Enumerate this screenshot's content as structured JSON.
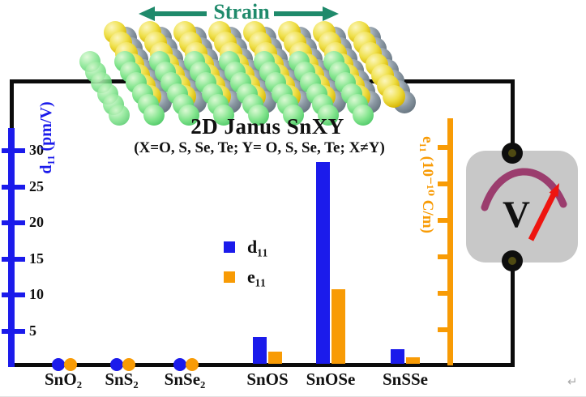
{
  "figure": {
    "strain_label": "Strain",
    "title": "2D Janus SnXY",
    "subtitle": "(X=O, S, Se, Te; Y= O, S, Se, Te; X≠Y)",
    "voltmeter_label": "V",
    "return_mark": "↵"
  },
  "colors": {
    "d11_blue": "#1b1beb",
    "e11_orange": "#f89b05",
    "strain_teal": "#1f8a6b",
    "wire_black": "#0b0b0b",
    "meter_body_gray": "#c8c8c8",
    "meter_arc_purple": "#9b3d6e",
    "meter_needle_red": "#ee1510",
    "atom_x_yellow": "#e8d232",
    "atom_sn_gray": "#7a8894",
    "atom_y_green": "#6fdc82"
  },
  "chart_data": {
    "type": "bar",
    "title": "2D Janus SnXY piezoelectric coefficients",
    "categories": [
      "SnO₂",
      "SnS₂",
      "SnSe₂",
      "SnOS",
      "SnOSe",
      "SnSSe"
    ],
    "series": [
      {
        "name": "d₁₁",
        "axis": "left",
        "unit": "pm/V",
        "values": [
          0,
          0,
          0,
          3.7,
          28,
          2
        ]
      },
      {
        "name": "e₁₁",
        "axis": "right",
        "unit": "10⁻¹⁰ C/m",
        "values": [
          0,
          0,
          0,
          1.7,
          10.3,
          0.9
        ]
      }
    ],
    "display": [
      "dot",
      "dot",
      "dot",
      "bar",
      "bar",
      "bar"
    ],
    "left_axis": {
      "label": "d₁₁ (pm/V)",
      "ticks": [
        5,
        10,
        15,
        20,
        25,
        30
      ],
      "ylim": [
        0,
        33
      ]
    },
    "right_axis": {
      "label": "e₁₁ (10⁻¹⁰ C/m)",
      "ticks_unlabeled": 6
    },
    "legend": {
      "position": "center",
      "entries": [
        "d₁₁",
        "e₁₁"
      ]
    },
    "grid": false
  }
}
